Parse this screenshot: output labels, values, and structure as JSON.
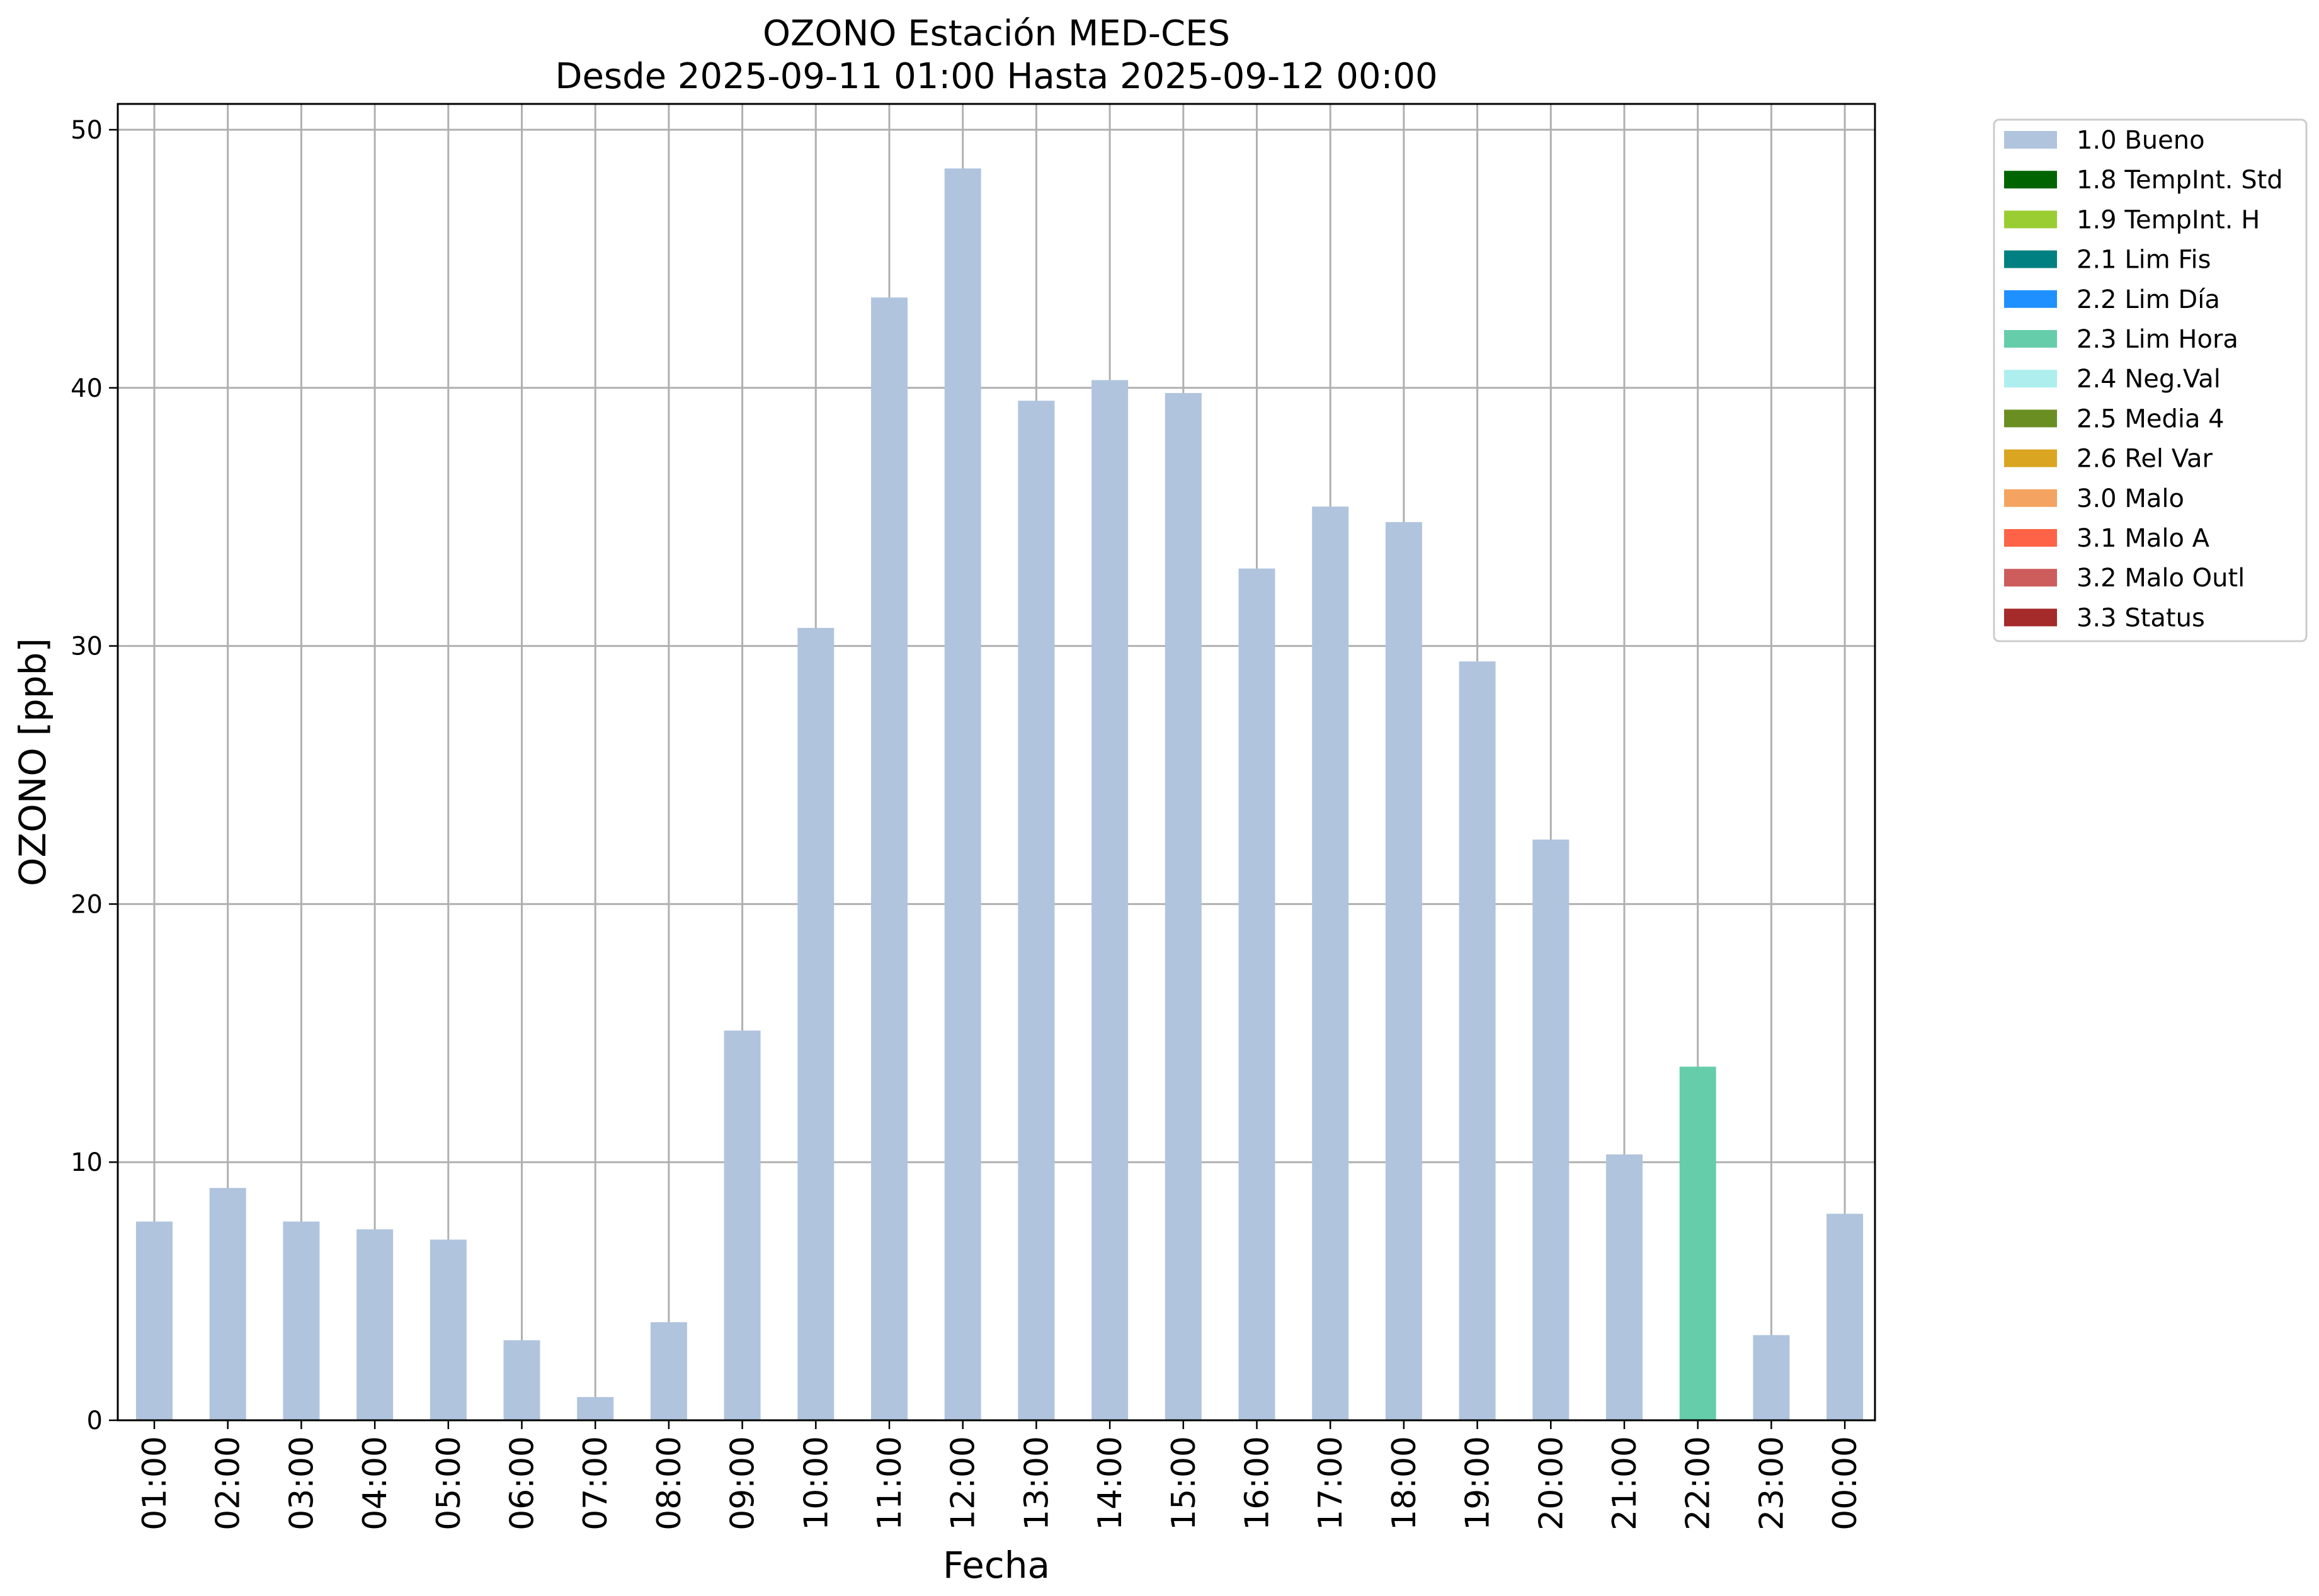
{
  "chart_data": {
    "type": "bar",
    "title": "OZONO Estación MED-CES",
    "subtitle": "Desde 2025-09-11 01:00 Hasta 2025-09-12 00:00",
    "xlabel": "Fecha",
    "ylabel": "OZONO [ppb]",
    "ylim": [
      0,
      51
    ],
    "yticks": [
      0,
      10,
      20,
      30,
      40,
      50
    ],
    "grid": true,
    "legend_position": "outside top-right",
    "categories": [
      "01:00",
      "02:00",
      "03:00",
      "04:00",
      "05:00",
      "06:00",
      "07:00",
      "08:00",
      "09:00",
      "10:00",
      "11:00",
      "12:00",
      "13:00",
      "14:00",
      "15:00",
      "16:00",
      "17:00",
      "18:00",
      "19:00",
      "20:00",
      "21:00",
      "22:00",
      "23:00",
      "00:00"
    ],
    "values": [
      7.7,
      9.0,
      7.7,
      7.4,
      7.0,
      3.1,
      0.9,
      3.8,
      15.1,
      30.7,
      43.5,
      48.5,
      39.5,
      40.3,
      39.8,
      33.0,
      35.4,
      34.8,
      29.4,
      22.5,
      10.3,
      13.7,
      3.3,
      8.0
    ],
    "flags": [
      "1.0 Bueno",
      "1.0 Bueno",
      "1.0 Bueno",
      "1.0 Bueno",
      "1.0 Bueno",
      "1.0 Bueno",
      "1.0 Bueno",
      "1.0 Bueno",
      "1.0 Bueno",
      "1.0 Bueno",
      "1.0 Bueno",
      "1.0 Bueno",
      "1.0 Bueno",
      "1.0 Bueno",
      "1.0 Bueno",
      "1.0 Bueno",
      "1.0 Bueno",
      "1.0 Bueno",
      "1.0 Bueno",
      "1.0 Bueno",
      "1.0 Bueno",
      "2.3 Lim Hora",
      "1.0 Bueno",
      "1.0 Bueno"
    ],
    "legend": [
      {
        "label": "1.0 Bueno",
        "color": "#b0c4de"
      },
      {
        "label": "1.8 TempInt. Std",
        "color": "#006400"
      },
      {
        "label": "1.9 TempInt. H",
        "color": "#9acd32"
      },
      {
        "label": "2.1 Lim Fis",
        "color": "#008080"
      },
      {
        "label": "2.2 Lim Día",
        "color": "#1e90ff"
      },
      {
        "label": "2.3 Lim Hora",
        "color": "#66cdaa"
      },
      {
        "label": "2.4 Neg.Val",
        "color": "#afeeee"
      },
      {
        "label": "2.5 Media 4",
        "color": "#6b8e23"
      },
      {
        "label": "2.6 Rel Var",
        "color": "#daa520"
      },
      {
        "label": "3.0 Malo",
        "color": "#f4a460"
      },
      {
        "label": "3.1 Malo A",
        "color": "#ff6347"
      },
      {
        "label": "3.2 Malo Outl",
        "color": "#cd5c5c"
      },
      {
        "label": "3.3 Status",
        "color": "#a52a2a"
      }
    ]
  }
}
